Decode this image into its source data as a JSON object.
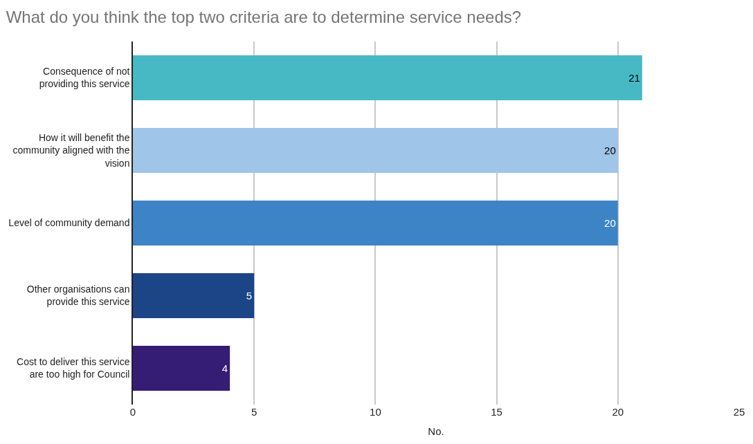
{
  "chart_data": {
    "type": "bar",
    "orientation": "horizontal",
    "title": "What do you think the top two criteria are to determine service needs?",
    "categories": [
      "Consequence of not\nproviding this service",
      "How it will benefit the\ncommunity aligned with the\nvision",
      "Level of community demand",
      "Other organisations can\nprovide this service",
      "Cost to deliver this service\nare too high for Council"
    ],
    "values": [
      21,
      20,
      20,
      5,
      4
    ],
    "colors": [
      "#47b9c4",
      "#9fc5e8",
      "#3d84c6",
      "#1b4587",
      "#351c75"
    ],
    "xlabel": "No.",
    "xlim": [
      0,
      25
    ],
    "xticks": [
      0,
      5,
      10,
      15,
      20,
      25
    ],
    "grid": "x",
    "data_labels": true
  }
}
